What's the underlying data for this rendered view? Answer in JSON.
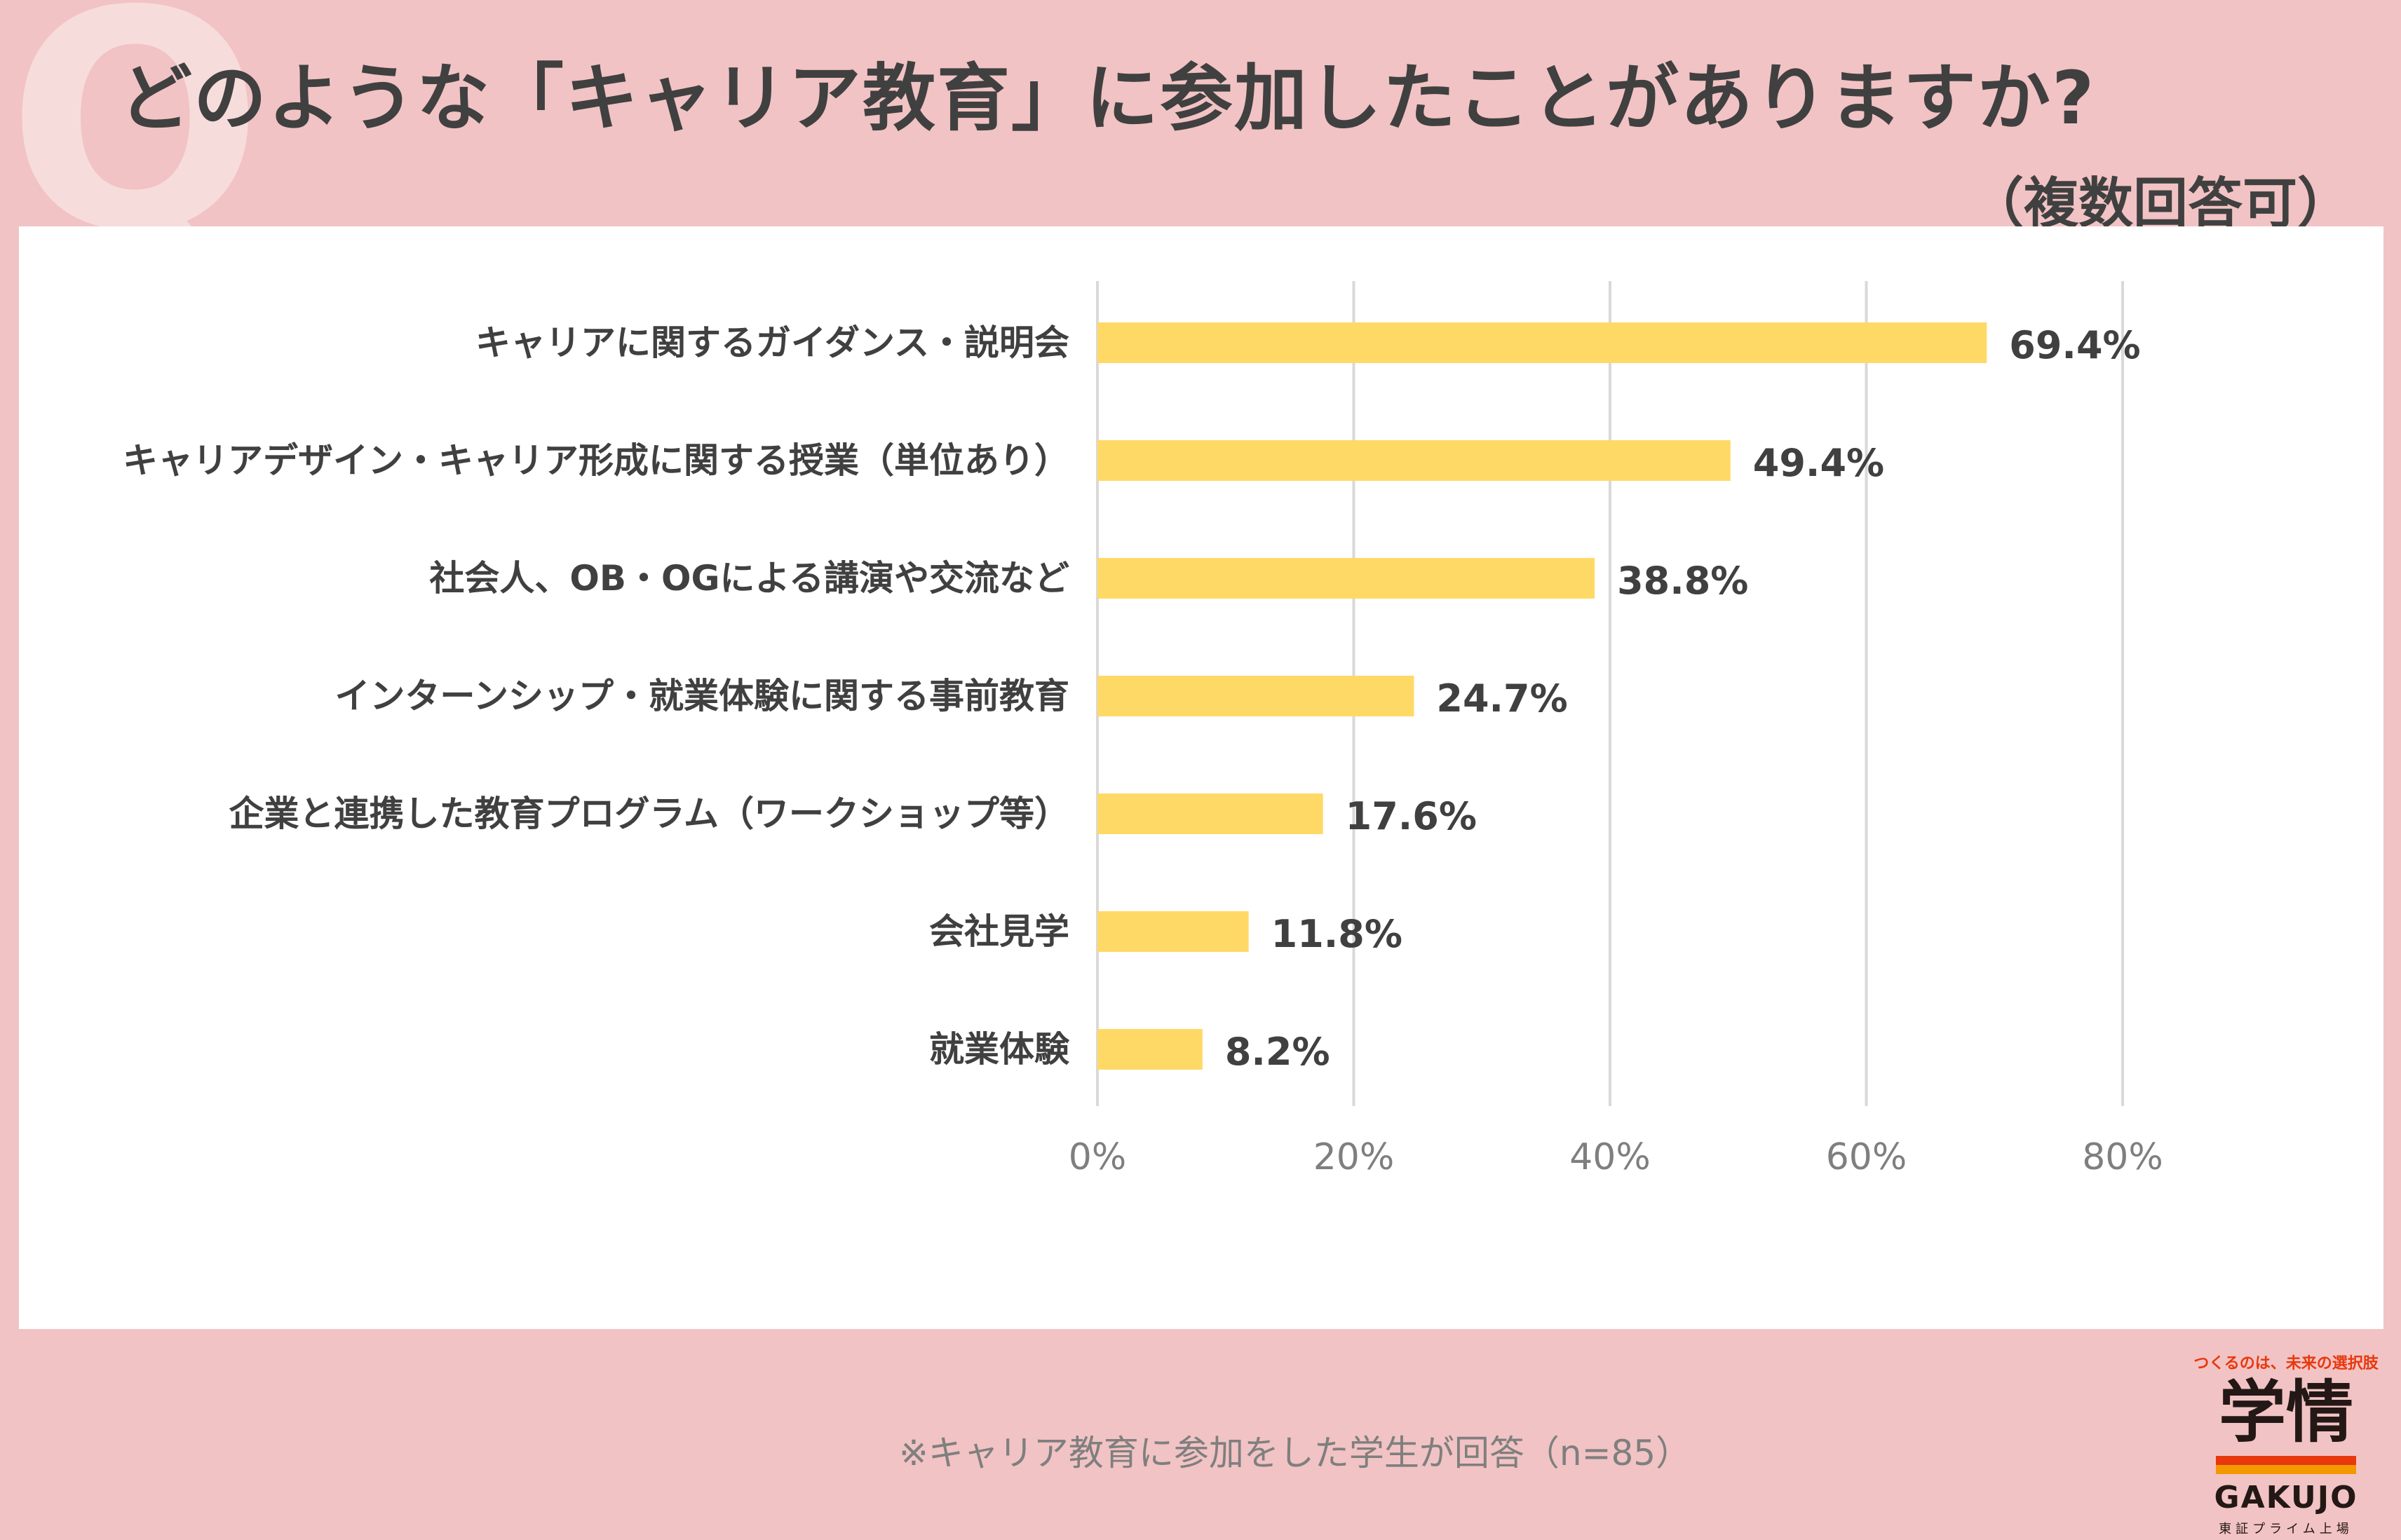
{
  "header": {
    "decor_letter": "Q",
    "title": "どのような「キャリア教育」に参加したことがありますか?",
    "subtitle": "（複数回答可）"
  },
  "note": "※キャリア教育に参加をした学生が回答（n=85）",
  "logo": {
    "tagline": "つくるのは、未来の選択肢",
    "kanji": "学情",
    "word": "GAKUJO",
    "listed": "東証プライム上場"
  },
  "colors": {
    "background": "#F2C3C4",
    "bar": "#FFD966",
    "grid": "#D9D9D9",
    "text": "#404040"
  },
  "chart_data": {
    "type": "bar",
    "orientation": "horizontal",
    "title": "どのような「キャリア教育」に参加したことがありますか?",
    "categories": [
      "キャリアに関するガイダンス・説明会",
      "キャリアデザイン・キャリア形成に関する授業（単位あり）",
      "社会人、OB・OGによる講演や交流など",
      "インターンシップ・就業体験に関する事前教育",
      "企業と連携した教育プログラム（ワークショップ等）",
      "会社見学",
      "就業体験"
    ],
    "values": [
      69.4,
      49.4,
      38.8,
      24.7,
      17.6,
      11.8,
      8.2
    ],
    "value_labels": [
      "69.4%",
      "49.4%",
      "38.8%",
      "24.7%",
      "17.6%",
      "11.8%",
      "8.2%"
    ],
    "xlim": [
      0,
      80
    ],
    "ticks": [
      0,
      20,
      40,
      60,
      80
    ],
    "tick_labels": [
      "0%",
      "20%",
      "40%",
      "60%",
      "80%"
    ],
    "grid": true,
    "xlabel": "",
    "ylabel": ""
  }
}
